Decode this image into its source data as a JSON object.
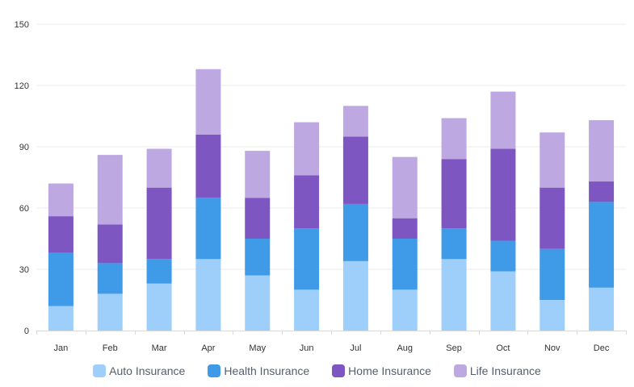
{
  "chart_data": {
    "type": "bar",
    "stacked": true,
    "categories": [
      "Jan",
      "Feb",
      "Mar",
      "Apr",
      "May",
      "Jun",
      "Jul",
      "Aug",
      "Sep",
      "Oct",
      "Nov",
      "Dec"
    ],
    "series": [
      {
        "name": "Auto Insurance",
        "color": "#9dcffa",
        "values": [
          12,
          18,
          23,
          35,
          27,
          20,
          34,
          20,
          35,
          29,
          15,
          21
        ]
      },
      {
        "name": "Health Insurance",
        "color": "#3f9ae8",
        "values": [
          26,
          15,
          12,
          30,
          18,
          30,
          28,
          25,
          15,
          15,
          25,
          42
        ]
      },
      {
        "name": "Home Insurance",
        "color": "#7e56c2",
        "values": [
          18,
          19,
          35,
          31,
          20,
          26,
          33,
          10,
          34,
          45,
          30,
          10
        ]
      },
      {
        "name": "Life Insurance",
        "color": "#bea8e2",
        "values": [
          16,
          34,
          19,
          32,
          23,
          26,
          15,
          30,
          20,
          28,
          27,
          30
        ]
      }
    ],
    "yticks": [
      0,
      30,
      60,
      90,
      120,
      150
    ],
    "ylim": [
      0,
      150
    ],
    "grid": true,
    "legend_position": "bottom",
    "title": "",
    "xlabel": "",
    "ylabel": ""
  }
}
